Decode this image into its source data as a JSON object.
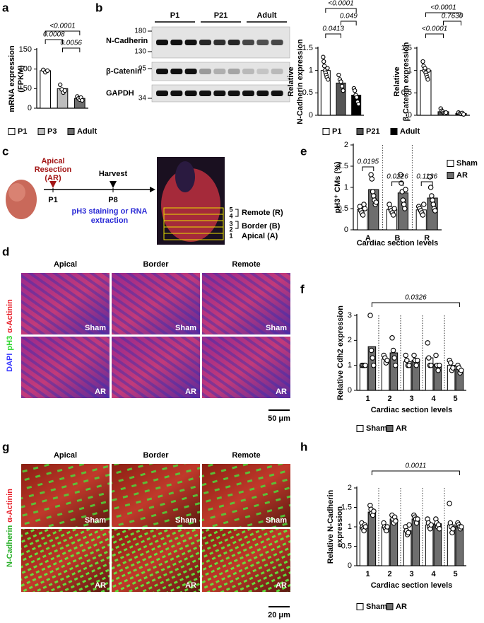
{
  "panel_labels": [
    "a",
    "b",
    "c",
    "d",
    "e",
    "f",
    "g",
    "h"
  ],
  "chart_data": [
    {
      "type": "bar",
      "ylabel": [
        "mRNA expression",
        "(FPKM)"
      ],
      "categories": [
        "P1",
        "P3",
        "Adult"
      ],
      "values": [
        96,
        50,
        25
      ],
      "colors": [
        "#ffffff",
        "#bdbdbd",
        "#6e6e6e"
      ],
      "points": [
        [
          98,
          92,
          96
        ],
        [
          60,
          48,
          40,
          45
        ],
        [
          30,
          25,
          22,
          27,
          20
        ]
      ],
      "ylim": [
        0,
        150
      ],
      "yticks": [
        0,
        50,
        100,
        150
      ],
      "annotations": [
        "<0.0001",
        "0.0008",
        "0.0056"
      ],
      "legend": "bottom"
    },
    {
      "type": "bar",
      "ylabel": [
        "Relative",
        "N-Cadherin expression"
      ],
      "categories": [
        "P1",
        "P21",
        "Adult"
      ],
      "values": [
        1.0,
        0.72,
        0.45
      ],
      "colors": [
        "#ffffff",
        "#555555",
        "#000000"
      ],
      "points": [
        [
          1.3,
          1.2,
          1.1,
          1.0,
          0.95,
          0.9,
          0.85,
          1.05,
          0.8
        ],
        [
          0.9,
          0.8,
          0.75,
          0.65,
          0.55
        ],
        [
          0.6,
          0.55,
          0.45,
          0.4,
          0.3,
          0.25
        ]
      ],
      "ylim": [
        0,
        1.5
      ],
      "yticks": [
        0,
        0.5,
        1,
        1.5
      ],
      "annotations": [
        "<0.0001",
        "0.0413",
        "0.049"
      ],
      "legend": "bottom"
    },
    {
      "type": "bar",
      "ylabel": [
        "Relative",
        "β-Catenin expression"
      ],
      "categories": [
        "P1",
        "P21",
        "Adult"
      ],
      "values": [
        1.0,
        0.08,
        0.04
      ],
      "colors": [
        "#ffffff",
        "#555555",
        "#000000"
      ],
      "points": [
        [
          1.2,
          1.1,
          1.0,
          1.05,
          0.95,
          0.9,
          0.85,
          0.8,
          1.0
        ],
        [
          0.15,
          0.1,
          0.08,
          0.05,
          0.04,
          0.06
        ],
        [
          0.06,
          0.04,
          0.03,
          0.05,
          0.02
        ]
      ],
      "ylim": [
        0,
        1.5
      ],
      "yticks": [
        0,
        0.5,
        1,
        1.5
      ],
      "annotations": [
        "<0.0001",
        "<0.0001",
        "0.7630"
      ]
    },
    {
      "type": "bar",
      "ylabel": [
        "pH3⁺ CMs (%)"
      ],
      "xlabel": "Cardiac section levels",
      "categories": [
        "A",
        "B",
        "R"
      ],
      "series": [
        {
          "name": "Sham",
          "color": "#ffffff",
          "values": [
            0.48,
            0.48,
            0.47
          ],
          "points": [
            [
              0.55,
              0.45,
              0.4,
              0.35,
              0.6,
              0.5
            ],
            [
              0.6,
              0.5,
              0.45,
              0.4,
              0.35,
              0.5
            ],
            [
              0.55,
              0.5,
              0.45,
              0.4,
              0.35,
              0.6
            ]
          ]
        },
        {
          "name": "AR",
          "color": "#6e6e6e",
          "values": [
            0.95,
            0.87,
            0.75
          ],
          "points": [
            [
              1.3,
              1.2,
              0.9,
              0.8,
              0.7,
              0.6,
              0.65
            ],
            [
              1.3,
              1.1,
              0.9,
              0.7,
              0.6,
              0.5,
              0.95
            ],
            [
              1.25,
              1.0,
              0.8,
              0.7,
              0.6,
              0.5,
              0.45
            ]
          ]
        }
      ],
      "ylim": [
        0,
        2
      ],
      "yticks": [
        0,
        0.5,
        1,
        1.5,
        2
      ],
      "annotations": [
        "0.0195",
        "0.0226",
        "0.1136"
      ],
      "legend": "top-right"
    },
    {
      "type": "bar",
      "ylabel": [
        "Relative Cdh2 expression"
      ],
      "xlabel": "Cardiac section levels",
      "categories": [
        "1",
        "2",
        "3",
        "4",
        "5"
      ],
      "series": [
        {
          "name": "Sham",
          "color": "#ffffff",
          "values": [
            1.0,
            1.25,
            1.15,
            1.3,
            1.0
          ],
          "points": [
            [
              1,
              1,
              1,
              1
            ],
            [
              1.4,
              1.3,
              1.1,
              1.2
            ],
            [
              1.4,
              1.2,
              1.0,
              1.0
            ],
            [
              1.9,
              1.3,
              1.0,
              1.0
            ],
            [
              1.2,
              1.1,
              0.8,
              0.9
            ]
          ]
        },
        {
          "name": "AR",
          "color": "#6e6e6e",
          "values": [
            1.75,
            1.5,
            1.2,
            1.05,
            0.85
          ],
          "points": [
            [
              3.0,
              1.6,
              1.3,
              1.0
            ],
            [
              2.1,
              1.6,
              1.3,
              1.0
            ],
            [
              1.4,
              1.2,
              1.0,
              1.2
            ],
            [
              1.4,
              1.0,
              0.8,
              1.0
            ],
            [
              1.0,
              0.9,
              0.7,
              0.8
            ]
          ]
        }
      ],
      "ylim": [
        0,
        3
      ],
      "yticks": [
        0,
        1,
        2,
        3
      ],
      "annotations": [
        "0.0326"
      ],
      "legend": "bottom"
    },
    {
      "type": "bar",
      "ylabel": [
        "Relative N-Cadherin",
        "expression"
      ],
      "xlabel": "Cardiac section levels",
      "categories": [
        "1",
        "2",
        "3",
        "4",
        "5"
      ],
      "series": [
        {
          "name": "Sham",
          "color": "#ffffff",
          "values": [
            1.0,
            1.0,
            0.9,
            1.05,
            1.05
          ],
          "points": [
            [
              1.1,
              1.0,
              0.95,
              0.9,
              1.05,
              1.0
            ],
            [
              1.1,
              1.0,
              0.95,
              0.9,
              1.0
            ],
            [
              1.0,
              0.9,
              0.8,
              0.85,
              1.05
            ],
            [
              1.2,
              1.1,
              1.0,
              0.95,
              1.05
            ],
            [
              1.6,
              1.1,
              1.0,
              0.85,
              0.95
            ]
          ]
        },
        {
          "name": "AR",
          "color": "#6e6e6e",
          "values": [
            1.38,
            1.2,
            1.2,
            1.08,
            1.02
          ],
          "points": [
            [
              1.55,
              1.45,
              1.35,
              1.3,
              1.4
            ],
            [
              1.3,
              1.2,
              1.1,
              1.25,
              1.15
            ],
            [
              1.3,
              1.25,
              1.2,
              1.1,
              1.2
            ],
            [
              1.2,
              1.1,
              1.0,
              1.05,
              0.95
            ],
            [
              1.1,
              1.05,
              1.0,
              0.95,
              1.0
            ]
          ]
        }
      ],
      "ylim": [
        0,
        2
      ],
      "yticks": [
        0,
        0.5,
        1,
        1.5,
        2
      ],
      "annotations": [
        "0.0011"
      ],
      "legend": "bottom"
    }
  ],
  "blot": {
    "groups": [
      "P1",
      "P21",
      "Adult"
    ],
    "rows": [
      {
        "name": "N-Cadherin",
        "markers": [
          180,
          130
        ]
      },
      {
        "name": "β-Catenin",
        "markers": [
          95
        ]
      },
      {
        "name": "GAPDH",
        "markers": [
          34
        ]
      }
    ]
  },
  "diagram": {
    "resection": [
      "Apical",
      "Resection",
      "(AR)"
    ],
    "start": "P1",
    "harvest": "Harvest",
    "end": "P8",
    "procedure": [
      "pH3 staining or RNA",
      "extraction"
    ],
    "levels": [
      {
        "numbers": [
          5,
          4
        ],
        "label": "Remote (R)"
      },
      {
        "numbers": [
          3,
          2
        ],
        "label": "Border (B)"
      },
      {
        "numbers": [
          1
        ],
        "label": "Apical (A)"
      }
    ]
  },
  "micrographs": [
    {
      "columns": [
        "Apical",
        "Border",
        "Remote"
      ],
      "rows": [
        "Sham",
        "AR"
      ],
      "stain": [
        "DAPI",
        "pH3",
        "α-Actinin"
      ],
      "scale_bar": "50 μm"
    },
    {
      "columns": [
        "Apical",
        "Border",
        "Remote"
      ],
      "rows": [
        "Sham",
        "AR"
      ],
      "stain": [
        "N-Cadherin",
        "α-Actinin"
      ],
      "scale_bar": "20 μm"
    }
  ]
}
